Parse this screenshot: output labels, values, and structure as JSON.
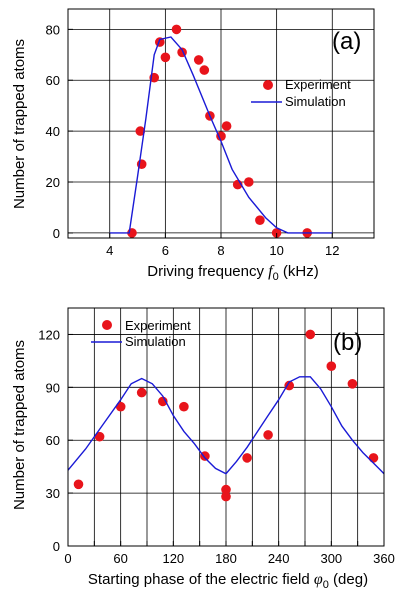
{
  "chart_data": [
    {
      "type": "scatter",
      "panel_label": "(a)",
      "xlabel": "Driving frequency",
      "xlabel_symbol": "f",
      "xlabel_subscript": "0",
      "xlabel_unit": "(kHz)",
      "ylabel": "Number of trapped atoms",
      "xlim": [
        2.5,
        13.5
      ],
      "ylim": [
        -2,
        88
      ],
      "xticks": [
        4,
        6,
        8,
        10,
        12
      ],
      "yticks": [
        0,
        20,
        40,
        60,
        80
      ],
      "xtick_labels": [
        "4",
        "6",
        "8",
        "10",
        "12"
      ],
      "ytick_labels": [
        "0",
        "20",
        "40",
        "60",
        "80"
      ],
      "grid": true,
      "legend_position": "top-right",
      "series": [
        {
          "name": "Experiment",
          "kind": "points",
          "color": "#e8141b",
          "x": [
            4.8,
            5.1,
            5.15,
            5.6,
            5.8,
            6.0,
            6.4,
            6.6,
            7.2,
            7.4,
            7.6,
            8.0,
            8.2,
            8.6,
            9.0,
            9.4,
            10.0,
            11.1
          ],
          "y": [
            0,
            40,
            27,
            61,
            75,
            69,
            80,
            71,
            68,
            64,
            46,
            38,
            42,
            19,
            20,
            5,
            0,
            0
          ]
        },
        {
          "name": "Simulation",
          "kind": "line",
          "color": "#1a1ad6",
          "x": [
            4.0,
            4.7,
            5.0,
            5.3,
            5.6,
            5.8,
            6.2,
            6.6,
            7.0,
            7.6,
            8.0,
            8.4,
            9.0,
            9.6,
            10.0,
            10.4,
            11.0,
            12.0
          ],
          "y": [
            0,
            0,
            22,
            45,
            70,
            76,
            77,
            72,
            62,
            46,
            36,
            25,
            14,
            6,
            2,
            0,
            0,
            0
          ]
        }
      ]
    },
    {
      "type": "scatter",
      "panel_label": "(b)",
      "xlabel": "Starting phase of the electric field",
      "xlabel_symbol": "φ",
      "xlabel_subscript": "0",
      "xlabel_unit": "(deg)",
      "ylabel": "Number of trapped atoms",
      "xlim": [
        0,
        360
      ],
      "ylim": [
        0,
        135
      ],
      "xticks": [
        0,
        30,
        60,
        90,
        120,
        150,
        180,
        210,
        240,
        270,
        300,
        330,
        360
      ],
      "xtick_labels": [
        "0",
        "60",
        "120",
        "180",
        "240",
        "300",
        "360"
      ],
      "xtick_label_values": [
        0,
        60,
        120,
        180,
        240,
        300,
        360
      ],
      "yticks": [
        0,
        30,
        60,
        90,
        120
      ],
      "ytick_labels": [
        "0",
        "30",
        "60",
        "90",
        "120"
      ],
      "grid": true,
      "legend_position": "top-left",
      "series": [
        {
          "name": "Experiment",
          "kind": "points",
          "color": "#e8141b",
          "x": [
            12,
            36,
            60,
            84,
            108,
            132,
            156,
            180,
            180,
            204,
            228,
            252,
            276,
            300,
            324,
            348
          ],
          "y": [
            35,
            62,
            79,
            87,
            82,
            79,
            51,
            32,
            28,
            50,
            63,
            91,
            120,
            102,
            92,
            50
          ]
        },
        {
          "name": "Simulation",
          "kind": "line",
          "color": "#1a1ad6",
          "x": [
            0,
            20,
            40,
            60,
            72,
            84,
            96,
            108,
            120,
            132,
            144,
            156,
            168,
            180,
            192,
            204,
            216,
            228,
            240,
            252,
            264,
            276,
            288,
            300,
            312,
            324,
            336,
            348,
            360
          ],
          "y": [
            43,
            55,
            69,
            83,
            92,
            95,
            92,
            85,
            74,
            65,
            58,
            50,
            44,
            41,
            48,
            56,
            65,
            74,
            83,
            93,
            96,
            96,
            89,
            79,
            68,
            60,
            53,
            47,
            41
          ]
        }
      ]
    }
  ]
}
